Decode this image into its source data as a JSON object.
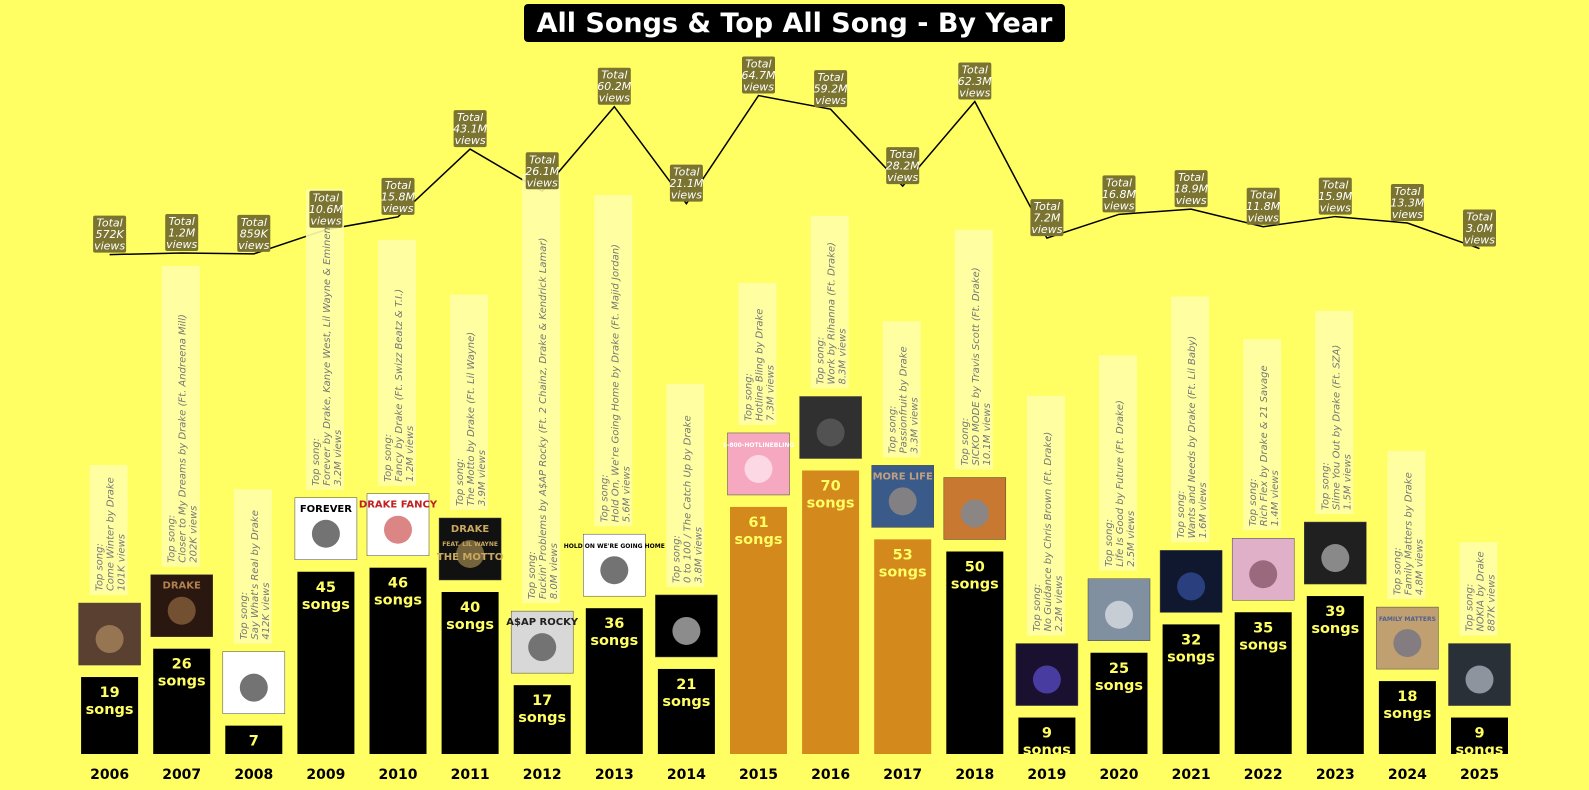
{
  "chart_data": {
    "type": "bar",
    "title": "All Songs & Top All Song - By Year",
    "categories": [
      "2006",
      "2007",
      "2008",
      "2009",
      "2010",
      "2011",
      "2012",
      "2013",
      "2014",
      "2015",
      "2016",
      "2017",
      "2018",
      "2019",
      "2020",
      "2021",
      "2022",
      "2023",
      "2024",
      "2025"
    ],
    "values": [
      19,
      26,
      7,
      45,
      46,
      40,
      17,
      36,
      21,
      61,
      70,
      53,
      50,
      9,
      25,
      32,
      35,
      39,
      18,
      9
    ],
    "value_suffix": "songs",
    "highlight_color": "#d4891c",
    "base_color": "#000000",
    "highlighted": [
      "2015",
      "2016",
      "2017"
    ],
    "totals_line": {
      "values": [
        0.572,
        1.2,
        0.859,
        10.6,
        15.8,
        43.1,
        26.1,
        60.2,
        21.1,
        64.7,
        59.2,
        28.2,
        62.3,
        7.2,
        16.8,
        18.9,
        11.8,
        15.9,
        13.3,
        3.0
      ],
      "labels": [
        "572K",
        "1.2M",
        "859K",
        "10.6M",
        "15.8M",
        "43.1M",
        "26.1M",
        "60.2M",
        "21.1M",
        "64.7M",
        "59.2M",
        "28.2M",
        "62.3M",
        "7.2M",
        "16.8M",
        "18.9M",
        "11.8M",
        "15.9M",
        "13.3M",
        "3.0M"
      ],
      "prefix": "Total",
      "suffix": "views"
    },
    "top_songs": [
      {
        "song": "Come Winter by Drake",
        "views": "101K views"
      },
      {
        "song": "Closer to My Dreams by Drake (Ft. Andreena Mill)",
        "views": "202K views"
      },
      {
        "song": "Say What's Real by Drake",
        "views": "412K views"
      },
      {
        "song": "Forever by Drake, Kanye West, Lil Wayne & Eminem",
        "views": "3.2M views"
      },
      {
        "song": "Fancy by Drake (Ft. Swizz Beatz & T.I.)",
        "views": "1.2M views"
      },
      {
        "song": "The Motto by Drake (Ft. Lil Wayne)",
        "views": "3.9M views"
      },
      {
        "song": "Fuckin' Problems by A$AP Rocky (Ft. 2 Chainz, Drake & Kendrick Lamar)",
        "views": "8.0M views"
      },
      {
        "song": "Hold On, We're Going Home by Drake (Ft. Majid Jordan)",
        "views": "5.6M views"
      },
      {
        "song": "0 to 100 / The Catch Up by Drake",
        "views": "3.8M views"
      },
      {
        "song": "Hotline Bling by Drake",
        "views": "7.3M views"
      },
      {
        "song": "Work by Rihanna (Ft. Drake)",
        "views": "8.3M views"
      },
      {
        "song": "Passionfruit by Drake",
        "views": "3.3M views"
      },
      {
        "song": "SICKO MODE by Travis Scott (Ft. Drake)",
        "views": "10.1M views"
      },
      {
        "song": "No Guidance by Chris Brown (Ft. Drake)",
        "views": "2.2M views"
      },
      {
        "song": "Life Is Good by Future (Ft. Drake)",
        "views": "2.5M views"
      },
      {
        "song": "Wants and Needs by Drake (Ft. Lil Baby)",
        "views": "1.6M views"
      },
      {
        "song": "Rich Flex by Drake & 21 Savage",
        "views": "1.4M views"
      },
      {
        "song": "Slime You Out by Drake (Ft. SZA)",
        "views": "1.5M views"
      },
      {
        "song": "Family Matters by Drake",
        "views": "4.8M views"
      },
      {
        "song": "NOKIA by Drake",
        "views": "887K views"
      }
    ],
    "top_song_prefix": "Top song:",
    "covers": [
      {
        "bg": "#5a4030",
        "fg": "#c8a070"
      },
      {
        "bg": "#2a1810",
        "fg": "#b08050"
      },
      {
        "bg": "#ffffff",
        "fg": "#000000"
      },
      {
        "bg": "#ffffff",
        "fg": "#000000"
      },
      {
        "bg": "#ffffff",
        "fg": "#c02020"
      },
      {
        "bg": "#111111",
        "fg": "#c8a860"
      },
      {
        "bg": "#d8d8d8",
        "fg": "#202020"
      },
      {
        "bg": "#ffffff",
        "fg": "#000000"
      },
      {
        "bg": "#000000",
        "fg": "#ffffff"
      },
      {
        "bg": "#f5a8c0",
        "fg": "#ffffff"
      },
      {
        "bg": "#303030",
        "fg": "#707070"
      },
      {
        "bg": "#3a5a8a",
        "fg": "#c0a080"
      },
      {
        "bg": "#c87830",
        "fg": "#5a90c8"
      },
      {
        "bg": "#1a1030",
        "fg": "#7060ff"
      },
      {
        "bg": "#8090a0",
        "fg": "#ffffff"
      },
      {
        "bg": "#101830",
        "fg": "#4060c0"
      },
      {
        "bg": "#e0b0c8",
        "fg": "#603040"
      },
      {
        "bg": "#202020",
        "fg": "#e0e0e0"
      },
      {
        "bg": "#c0a070",
        "fg": "#506090"
      },
      {
        "bg": "#2a3038",
        "fg": "#e0e8f0"
      }
    ],
    "cover_texts": {
      "2007": "DRAKE",
      "2009": "FOREVER",
      "2010": "DRAKE FANCY",
      "2011": "DRAKE",
      "2011b": "FEAT. LIL WAYNE",
      "2011c": "THE MOTTO",
      "2012": "A$AP ROCKY",
      "2013": "HOLD ON WE'RE GOING HOME",
      "2015": "1-800-HOTLINEBLING",
      "2017": "MORE LIFE",
      "2024": "FAMILY MATTERS"
    },
    "grid": false,
    "legend": "none"
  }
}
